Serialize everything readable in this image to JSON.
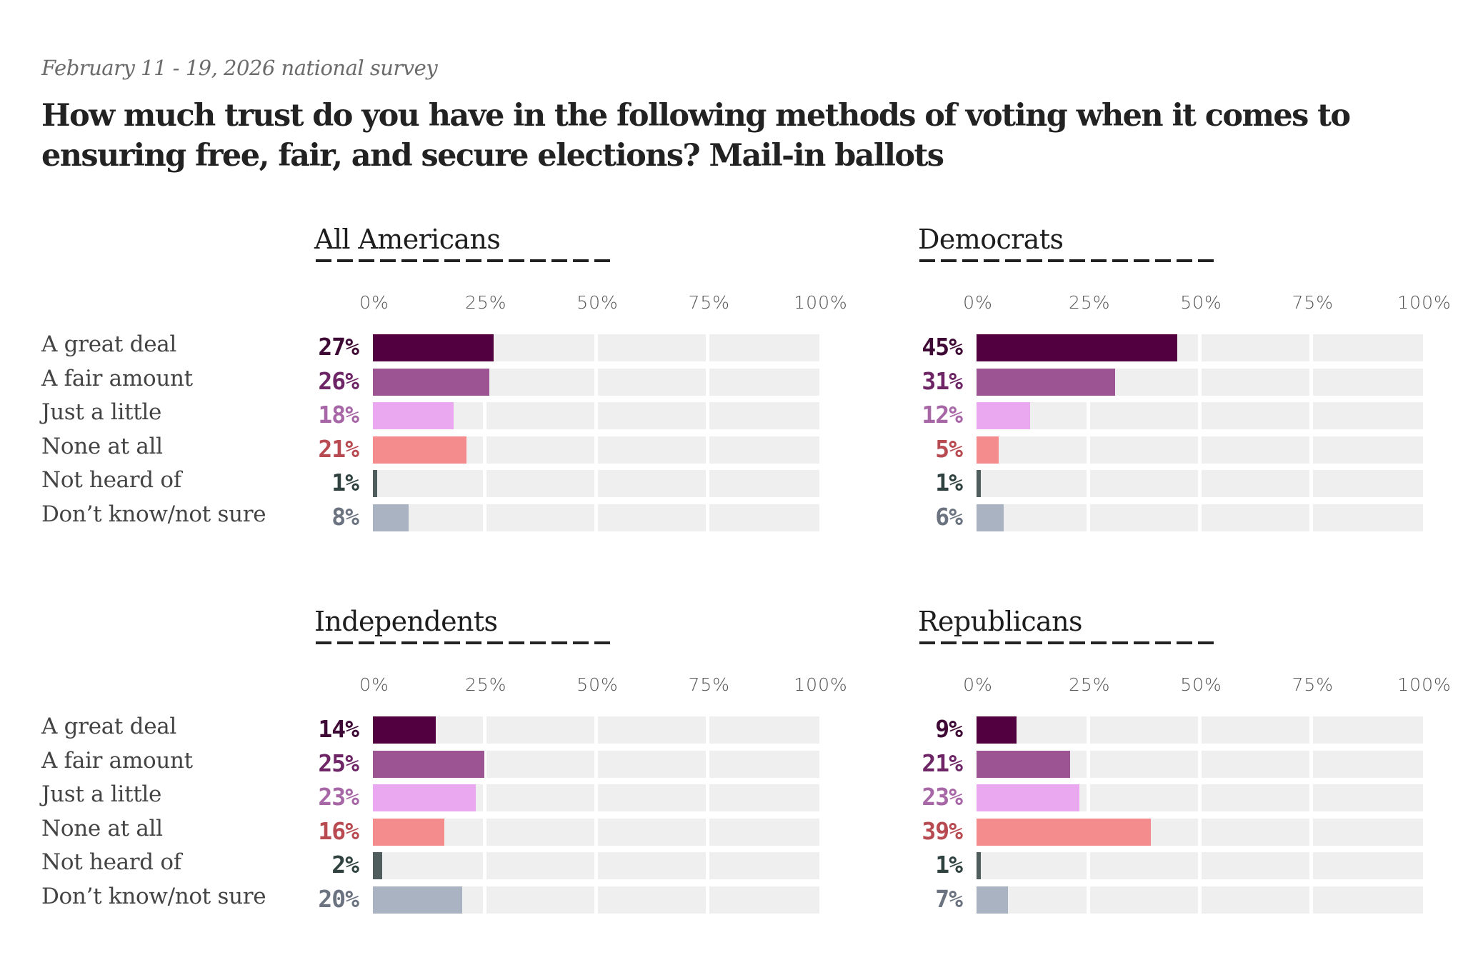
{
  "header": {
    "subtitle": "February 11 - 19, 2026 national survey",
    "title": "How much trust do you have in the following methods of voting when it comes to ensuring free, fair, and secure elections? Mail-in ballots"
  },
  "chart_data": {
    "type": "bar",
    "orientation": "horizontal",
    "title": "How much trust do you have in the following methods of voting when it comes to ensuring free, fair, and secure elections? Mail-in ballots",
    "subtitle": "February 11 - 19, 2026 national survey",
    "xlim": [
      0,
      100
    ],
    "x_ticks": [
      "0%",
      "25%",
      "50%",
      "75%",
      "100%"
    ],
    "grid": true,
    "categories": [
      "A great deal",
      "A fair amount",
      "Just a little",
      "None at all",
      "Not heard of",
      "Don’t know/not sure"
    ],
    "category_colors": {
      "bar": [
        "#530040",
        "#9c5592",
        "#e9a8ef",
        "#f48c8e",
        "#4f5e5d",
        "#aab3c1"
      ],
      "label": [
        "#3e0a35",
        "#6e2566",
        "#a766a6",
        "#b84a52",
        "#2f423f",
        "#6b7380"
      ]
    },
    "track_color": "#efefef",
    "panels": [
      {
        "name": "All Americans",
        "values": [
          27,
          26,
          18,
          21,
          1,
          8
        ],
        "labels": [
          "27%",
          "26%",
          "18%",
          "21%",
          "1%",
          "8%"
        ]
      },
      {
        "name": "Democrats",
        "values": [
          45,
          31,
          12,
          5,
          1,
          6
        ],
        "labels": [
          "45%",
          "31%",
          "12%",
          "5%",
          "1%",
          "6%"
        ]
      },
      {
        "name": "Independents",
        "values": [
          14,
          25,
          23,
          16,
          2,
          20
        ],
        "labels": [
          "14%",
          "25%",
          "23%",
          "16%",
          "2%",
          "20%"
        ]
      },
      {
        "name": "Republicans",
        "values": [
          9,
          21,
          23,
          39,
          1,
          7
        ],
        "labels": [
          "9%",
          "21%",
          "23%",
          "39%",
          "1%",
          "7%"
        ]
      }
    ]
  }
}
